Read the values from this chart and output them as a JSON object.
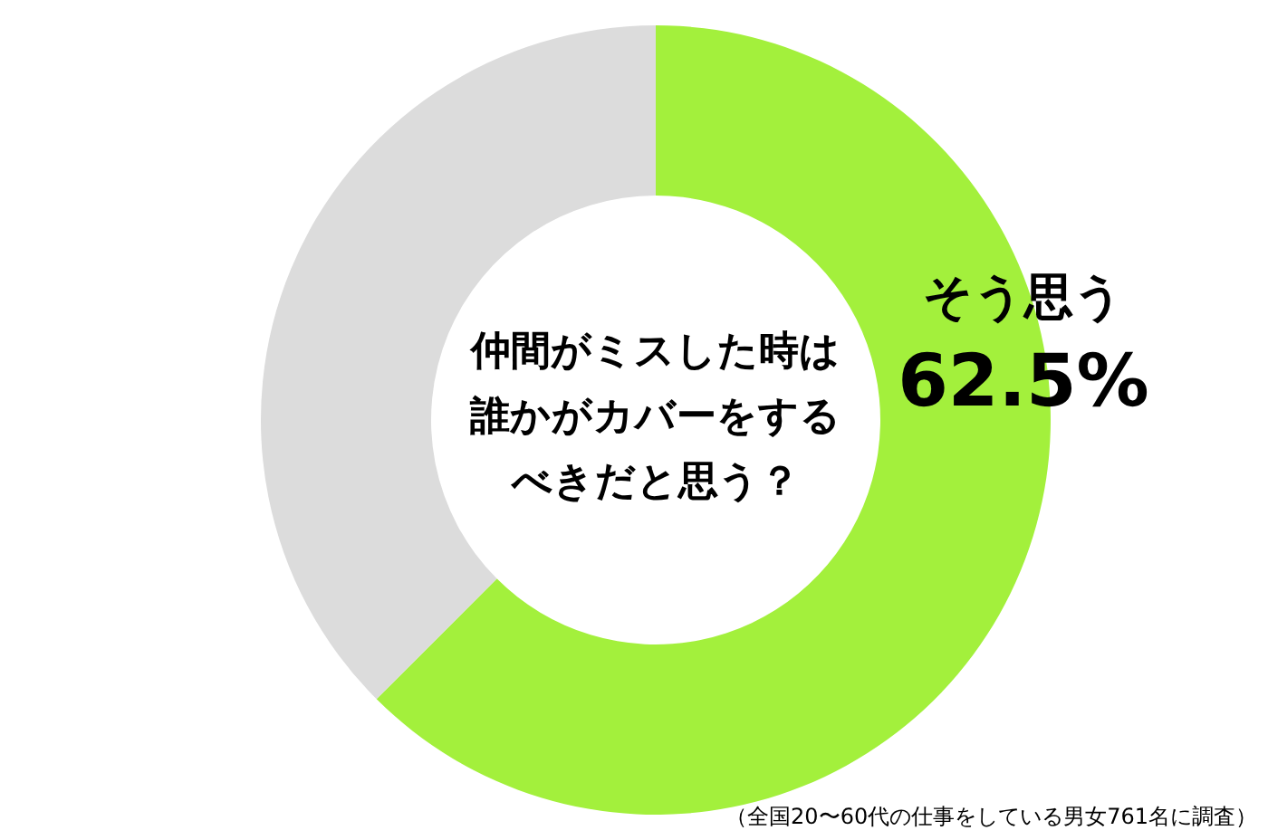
{
  "chart_data": {
    "type": "donut",
    "title": "仲間がミスした時は誰かがカバーをするべきだと思う？",
    "categories": [
      "そう思う",
      null
    ],
    "values": [
      62.5,
      37.5
    ],
    "colors": [
      "#a3f03c",
      "#dcdcdc"
    ],
    "value_labels": [
      "62.5%",
      null
    ],
    "annotations": [
      "（全国20〜60代の仕事をしている男女761名に調査）"
    ]
  }
}
